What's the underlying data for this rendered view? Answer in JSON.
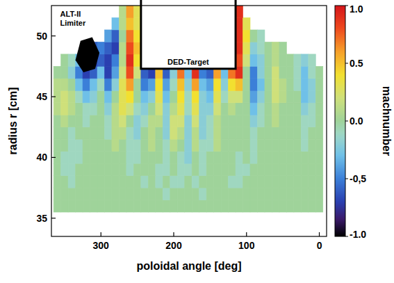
{
  "chart_data": {
    "type": "heatmap",
    "x_label": "poloidal angle [deg]",
    "y_label": "radius r [cm]",
    "colorbar_label": "machnumber",
    "annotations": [
      "ALT-II Limiter",
      "DED-Target"
    ],
    "xlim": [
      368,
      -10
    ],
    "ylim": [
      33.5,
      52.5
    ],
    "xticks": [
      300,
      200,
      100,
      0
    ],
    "yticks": [
      35,
      40,
      45,
      50
    ],
    "zlim": [
      -1,
      1
    ],
    "zticks": [
      {
        "value": 1,
        "label": "1.0"
      },
      {
        "value": 0.5,
        "label": "0.5"
      },
      {
        "value": 0,
        "label": "0.0"
      },
      {
        "value": -0.5,
        "label": "-0,5"
      },
      {
        "value": -1,
        "label": "-1.0"
      }
    ],
    "x": [
      360,
      350,
      340,
      330,
      320,
      310,
      300,
      290,
      280,
      270,
      260,
      250,
      240,
      230,
      220,
      210,
      200,
      190,
      180,
      170,
      160,
      150,
      140,
      130,
      120,
      110,
      100,
      90,
      80,
      70,
      60,
      50,
      40,
      30,
      20,
      10,
      0
    ],
    "y": [
      36,
      37,
      38,
      39,
      40,
      41,
      42,
      43,
      44,
      45,
      46,
      47,
      48,
      49,
      50,
      51,
      52
    ],
    "z": [
      [
        0,
        0,
        0,
        0,
        0,
        0,
        0,
        0,
        0,
        0,
        0,
        0,
        0,
        0,
        0,
        0,
        0,
        0,
        0,
        0,
        0,
        0,
        0,
        0,
        0,
        0,
        0,
        0,
        0,
        0,
        0,
        0,
        0,
        0,
        0,
        0,
        0
      ],
      [
        0,
        0,
        0,
        0,
        0,
        0,
        0,
        0,
        0,
        0,
        0,
        0,
        0,
        0,
        0,
        -0.1,
        0,
        0,
        0,
        0,
        -0.1,
        0,
        0,
        0,
        0,
        0,
        0,
        0,
        0,
        0,
        0,
        0,
        0,
        0,
        0,
        0,
        0
      ],
      [
        0,
        0,
        -0.1,
        0,
        0,
        0,
        0,
        0,
        0,
        0,
        0,
        0,
        -0.1,
        0,
        -0.1,
        0,
        -0.1,
        -0.1,
        0,
        -0.1,
        0,
        0,
        0,
        0,
        -0.1,
        -0.1,
        0,
        0,
        0,
        0,
        0,
        0,
        0,
        0,
        0,
        0,
        0
      ],
      [
        0,
        -0.1,
        -0.1,
        0,
        0,
        0,
        0,
        0,
        0,
        0,
        -0.1,
        0,
        0,
        0,
        -0.1,
        -0.1,
        0,
        -0.1,
        -0.1,
        0,
        -0.1,
        0,
        0,
        0,
        0,
        -0.1,
        -0.1,
        0,
        0,
        0,
        0,
        0,
        0,
        0,
        0,
        0,
        0
      ],
      [
        0,
        -0.1,
        -0.1,
        -0.1,
        0,
        0,
        0,
        0,
        0,
        0,
        -0.1,
        -0.1,
        0,
        0,
        0,
        -0.1,
        0,
        -0.1,
        -0.2,
        0,
        -0.1,
        0,
        0,
        0,
        0,
        -0.1,
        0,
        -0.1,
        0,
        0,
        0,
        0,
        0,
        0,
        0,
        0,
        0
      ],
      [
        0,
        0,
        -0.1,
        -0.1,
        0,
        0,
        0,
        0,
        0.1,
        0,
        -0.1,
        -0.1,
        0,
        0.1,
        0,
        -0.1,
        0.1,
        0,
        -0.2,
        0.1,
        -0.1,
        -0.1,
        0.1,
        0,
        0,
        0,
        0,
        -0.1,
        0,
        0,
        0,
        0,
        0,
        0,
        -0.1,
        0,
        0
      ],
      [
        0,
        0,
        -0.1,
        0,
        0,
        0,
        0,
        -0.1,
        0.1,
        0.1,
        -0.1,
        -0.2,
        0,
        0.1,
        0,
        -0.2,
        0.2,
        0.1,
        -0.2,
        0.1,
        -0.2,
        -0.1,
        0.1,
        0,
        0,
        0,
        0,
        -0.1,
        0,
        0,
        0,
        0,
        0,
        0,
        -0.1,
        0,
        0
      ],
      [
        0,
        0.1,
        0,
        0,
        -0.1,
        0,
        0,
        -0.1,
        0.1,
        0.2,
        0,
        -0.2,
        -0.1,
        0.1,
        0.1,
        -0.2,
        0.2,
        0.2,
        -0.2,
        0.2,
        -0.2,
        -0.1,
        0.1,
        0,
        0,
        0,
        0,
        -0.2,
        -0.1,
        0,
        0.1,
        0,
        0,
        0,
        -0.1,
        -0.1,
        0
      ],
      [
        0.1,
        0.2,
        0.1,
        0,
        -0.1,
        -0.1,
        0,
        -0.2,
        0.1,
        0.3,
        0.2,
        -0.1,
        -0.2,
        0,
        0.2,
        -0.2,
        0.1,
        0.3,
        -0.1,
        0.3,
        -0.2,
        -0.2,
        0.2,
        0,
        0.1,
        0,
        0,
        -0.3,
        -0.1,
        0,
        0.1,
        0,
        0,
        0,
        -0.2,
        -0.1,
        0
      ],
      [
        0.1,
        0.2,
        0.1,
        -0.1,
        -0.3,
        -0.2,
        0,
        -0.3,
        0,
        0.3,
        0.4,
        0,
        -0.3,
        -0.2,
        0.3,
        -0.3,
        0,
        0.4,
        -0.1,
        0.4,
        -0.2,
        -0.3,
        0.3,
        -0.1,
        0.2,
        0.2,
        0,
        -0.4,
        -0.2,
        0,
        0.2,
        0.1,
        0,
        0,
        -0.3,
        -0.2,
        0
      ],
      [
        0.1,
        0.1,
        0,
        -0.3,
        -0.5,
        -0.3,
        -0.1,
        -0.5,
        -0.2,
        0.3,
        0.6,
        0,
        -0.5,
        -0.4,
        0.4,
        -0.4,
        -0.1,
        0.5,
        -0.2,
        0.6,
        -0.3,
        -0.4,
        0.4,
        -0.2,
        0.4,
        0.5,
        0,
        -0.5,
        -0.3,
        0,
        0.2,
        0.1,
        0,
        -0.1,
        -0.3,
        -0.2,
        0
      ],
      [
        0,
        0,
        -0.2,
        -0.5,
        -0.7,
        -0.6,
        -0.3,
        -0.7,
        -0.4,
        0.2,
        0.8,
        0.2,
        -0.6,
        -0.7,
        0.5,
        -0.6,
        -0.2,
        0.7,
        -0.3,
        0.9,
        -0.5,
        -0.6,
        0.6,
        -0.3,
        0.7,
        0.9,
        0,
        -0.5,
        -0.2,
        0,
        0.2,
        0,
        0,
        -0.1,
        -0.3,
        -0.1,
        0
      ],
      [
        null,
        0,
        -0.1,
        -0.3,
        -0.6,
        -0.7,
        -0.6,
        -0.7,
        -0.5,
        0.1,
        0.9,
        0.4,
        null,
        null,
        null,
        null,
        null,
        null,
        null,
        null,
        null,
        null,
        null,
        null,
        null,
        0.8,
        0.2,
        -0.3,
        -0.2,
        0,
        0.1,
        0,
        0,
        -0.1,
        -0.2,
        -0.1,
        null
      ],
      [
        null,
        null,
        null,
        null,
        null,
        -0.6,
        -0.5,
        -0.6,
        -0.7,
        0.1,
        0.8,
        0.5,
        null,
        null,
        null,
        null,
        null,
        null,
        null,
        null,
        null,
        null,
        null,
        null,
        null,
        0.9,
        0.3,
        -0.2,
        -0.1,
        0,
        0.1,
        0,
        null,
        null,
        null,
        null,
        null
      ],
      [
        null,
        null,
        null,
        null,
        null,
        null,
        null,
        -0.4,
        -0.6,
        0,
        0.7,
        0.4,
        null,
        null,
        null,
        null,
        null,
        null,
        null,
        null,
        null,
        null,
        null,
        null,
        null,
        0.9,
        0.4,
        0,
        -0.1,
        null,
        null,
        null,
        null,
        null,
        null,
        null,
        null
      ],
      [
        null,
        null,
        null,
        null,
        null,
        null,
        null,
        null,
        -0.3,
        0.1,
        0.5,
        0.3,
        null,
        null,
        null,
        null,
        null,
        null,
        null,
        null,
        null,
        null,
        null,
        null,
        null,
        0.9,
        0.3,
        null,
        null,
        null,
        null,
        null,
        null,
        null,
        null,
        null,
        null
      ],
      [
        null,
        null,
        null,
        null,
        null,
        null,
        null,
        null,
        null,
        0.1,
        0.6,
        0.3,
        null,
        null,
        null,
        null,
        null,
        null,
        null,
        null,
        null,
        null,
        null,
        null,
        null,
        0.9,
        null,
        null,
        null,
        null,
        null,
        null,
        null,
        null,
        null,
        null,
        null
      ]
    ]
  }
}
